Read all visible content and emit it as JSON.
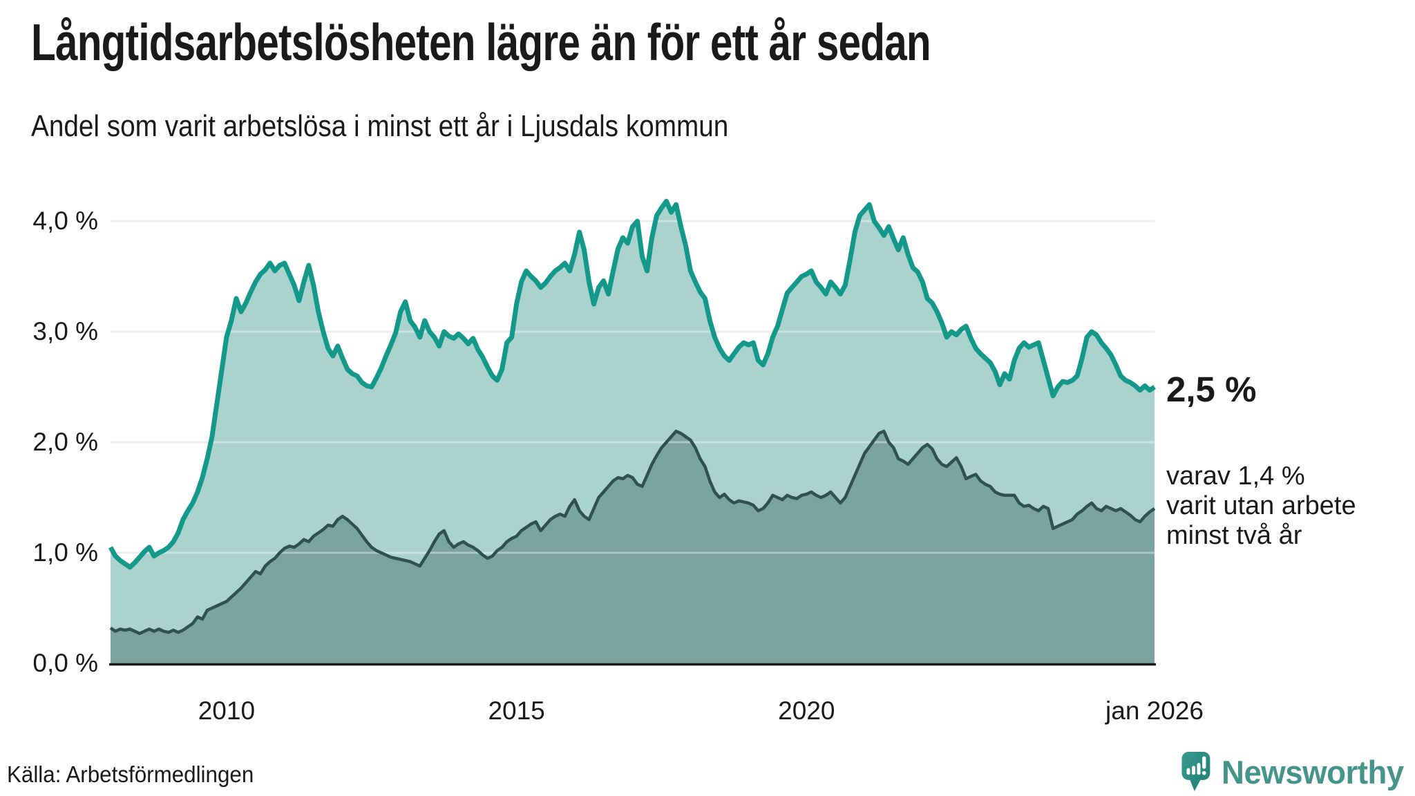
{
  "header": {
    "title": "Långtidsarbetslösheten lägre än för ett år sedan",
    "subtitle": "Andel som varit arbetslösa i minst ett år i Ljusdals kommun"
  },
  "annotations": {
    "end_value_label": "2,5 %",
    "secondary_note_lines": [
      "varav 1,4 %",
      "varit utan arbete",
      "minst två år"
    ]
  },
  "source": "Källa: Arbetsförmedlingen",
  "branding": {
    "wordmark": "Newsworthy",
    "logo_icon": "speech-bubble-bar-chart-icon",
    "wordmark_color": "#45948c",
    "logo_gradient_top": "#38998f",
    "logo_gradient_bottom": "#1e7e74"
  },
  "colors": {
    "teal_line": "#14988a",
    "light_fill": "#a9d3cc",
    "dark_fill": "#7aa49e",
    "dark_line": "#2e524d",
    "gridline": "#dfe0e4",
    "baseline": "#1a1a1a",
    "ink": "#1a1a1a"
  },
  "chart_data": {
    "type": "area",
    "title": "Långtidsarbetslösheten lägre än för ett år sedan",
    "subtitle": "Andel som varit arbetslösa i minst ett år i Ljusdals kommun",
    "unit": "%",
    "interval": "monthly",
    "x_start": "2008-01",
    "x_end": "2026-01",
    "ylim": [
      0,
      4.3
    ],
    "grid": "horizontal",
    "legend_position": "none",
    "y_ticks": [
      {
        "label": "0,0 %",
        "value": 0
      },
      {
        "label": "1,0 %",
        "value": 1
      },
      {
        "label": "2,0 %",
        "value": 2
      },
      {
        "label": "3,0 %",
        "value": 3
      },
      {
        "label": "4,0 %",
        "value": 4
      }
    ],
    "x_ticks": [
      {
        "label": "2010",
        "month": 24
      },
      {
        "label": "2015",
        "month": 84
      },
      {
        "label": "2020",
        "month": 144
      },
      {
        "label": "jan 2026",
        "month": 216
      }
    ],
    "series": [
      {
        "name": "Andel arbetslösa minst ett år",
        "line_color": "#14988a",
        "fill_color": "#a9d3cc",
        "last_value": 2.5,
        "values": [
          1.05,
          0.97,
          0.93,
          0.9,
          0.87,
          0.91,
          0.96,
          1.01,
          1.05,
          0.97,
          1.0,
          1.02,
          1.05,
          1.1,
          1.18,
          1.3,
          1.38,
          1.45,
          1.55,
          1.68,
          1.85,
          2.05,
          2.35,
          2.65,
          2.95,
          3.1,
          3.3,
          3.18,
          3.26,
          3.36,
          3.45,
          3.52,
          3.56,
          3.62,
          3.55,
          3.6,
          3.62,
          3.52,
          3.42,
          3.28,
          3.45,
          3.6,
          3.42,
          3.18,
          3.0,
          2.85,
          2.78,
          2.87,
          2.76,
          2.66,
          2.62,
          2.6,
          2.54,
          2.51,
          2.5,
          2.58,
          2.67,
          2.78,
          2.88,
          2.99,
          3.18,
          3.27,
          3.1,
          3.04,
          2.95,
          3.1,
          3.0,
          2.95,
          2.87,
          3.0,
          2.96,
          2.94,
          2.98,
          2.94,
          2.89,
          2.94,
          2.84,
          2.77,
          2.68,
          2.6,
          2.56,
          2.66,
          2.9,
          2.95,
          3.25,
          3.45,
          3.55,
          3.5,
          3.46,
          3.4,
          3.44,
          3.5,
          3.55,
          3.58,
          3.62,
          3.55,
          3.7,
          3.9,
          3.74,
          3.45,
          3.25,
          3.4,
          3.46,
          3.34,
          3.55,
          3.75,
          3.85,
          3.8,
          3.95,
          4.0,
          3.68,
          3.55,
          3.85,
          4.05,
          4.12,
          4.18,
          4.08,
          4.15,
          3.95,
          3.78,
          3.55,
          3.45,
          3.36,
          3.3,
          3.1,
          2.95,
          2.85,
          2.78,
          2.74,
          2.8,
          2.86,
          2.9,
          2.88,
          2.9,
          2.74,
          2.7,
          2.8,
          2.95,
          3.05,
          3.2,
          3.35,
          3.4,
          3.45,
          3.5,
          3.52,
          3.55,
          3.45,
          3.4,
          3.34,
          3.45,
          3.4,
          3.34,
          3.42,
          3.65,
          3.9,
          4.05,
          4.1,
          4.15,
          4.0,
          3.94,
          3.87,
          3.95,
          3.84,
          3.74,
          3.85,
          3.7,
          3.58,
          3.54,
          3.45,
          3.3,
          3.26,
          3.18,
          3.08,
          2.95,
          3.0,
          2.97,
          3.02,
          3.05,
          2.94,
          2.85,
          2.8,
          2.76,
          2.72,
          2.64,
          2.52,
          2.62,
          2.57,
          2.74,
          2.85,
          2.9,
          2.86,
          2.88,
          2.9,
          2.74,
          2.58,
          2.42,
          2.5,
          2.55,
          2.54,
          2.56,
          2.6,
          2.76,
          2.95,
          3.0,
          2.97,
          2.9,
          2.85,
          2.79,
          2.7,
          2.6,
          2.56,
          2.54,
          2.51,
          2.47,
          2.51,
          2.47,
          2.5
        ]
      },
      {
        "name": "varav arbetslösa minst två år",
        "line_color": "#2e524d",
        "fill_color": "#7aa49e",
        "last_value": 1.4,
        "values": [
          0.32,
          0.29,
          0.31,
          0.3,
          0.31,
          0.29,
          0.27,
          0.29,
          0.31,
          0.29,
          0.31,
          0.29,
          0.28,
          0.3,
          0.28,
          0.3,
          0.33,
          0.36,
          0.42,
          0.4,
          0.48,
          0.5,
          0.52,
          0.54,
          0.56,
          0.6,
          0.64,
          0.68,
          0.73,
          0.78,
          0.83,
          0.81,
          0.88,
          0.92,
          0.95,
          1.0,
          1.04,
          1.06,
          1.05,
          1.08,
          1.12,
          1.1,
          1.15,
          1.18,
          1.21,
          1.25,
          1.24,
          1.3,
          1.33,
          1.3,
          1.26,
          1.22,
          1.16,
          1.1,
          1.05,
          1.02,
          1.0,
          0.98,
          0.96,
          0.95,
          0.94,
          0.93,
          0.92,
          0.9,
          0.88,
          0.95,
          1.02,
          1.1,
          1.17,
          1.2,
          1.1,
          1.05,
          1.08,
          1.1,
          1.07,
          1.05,
          1.02,
          0.98,
          0.95,
          0.97,
          1.02,
          1.05,
          1.1,
          1.13,
          1.15,
          1.2,
          1.23,
          1.26,
          1.28,
          1.2,
          1.25,
          1.3,
          1.33,
          1.35,
          1.33,
          1.42,
          1.48,
          1.38,
          1.33,
          1.3,
          1.4,
          1.5,
          1.55,
          1.6,
          1.65,
          1.68,
          1.67,
          1.7,
          1.68,
          1.62,
          1.6,
          1.7,
          1.8,
          1.88,
          1.95,
          2.0,
          2.05,
          2.1,
          2.08,
          2.05,
          2.02,
          1.95,
          1.85,
          1.78,
          1.65,
          1.55,
          1.5,
          1.53,
          1.48,
          1.45,
          1.47,
          1.46,
          1.45,
          1.43,
          1.38,
          1.4,
          1.45,
          1.52,
          1.5,
          1.48,
          1.52,
          1.5,
          1.49,
          1.52,
          1.53,
          1.55,
          1.52,
          1.5,
          1.52,
          1.55,
          1.5,
          1.45,
          1.5,
          1.6,
          1.7,
          1.8,
          1.9,
          1.96,
          2.02,
          2.08,
          2.1,
          2.0,
          1.95,
          1.85,
          1.83,
          1.8,
          1.85,
          1.9,
          1.95,
          1.98,
          1.94,
          1.85,
          1.8,
          1.78,
          1.82,
          1.86,
          1.78,
          1.67,
          1.69,
          1.71,
          1.65,
          1.62,
          1.6,
          1.55,
          1.53,
          1.52,
          1.52,
          1.52,
          1.45,
          1.42,
          1.43,
          1.4,
          1.38,
          1.42,
          1.4,
          1.22,
          1.24,
          1.26,
          1.28,
          1.3,
          1.35,
          1.38,
          1.42,
          1.45,
          1.4,
          1.38,
          1.42,
          1.4,
          1.38,
          1.4,
          1.37,
          1.34,
          1.3,
          1.28,
          1.33,
          1.37,
          1.4
        ]
      }
    ]
  }
}
